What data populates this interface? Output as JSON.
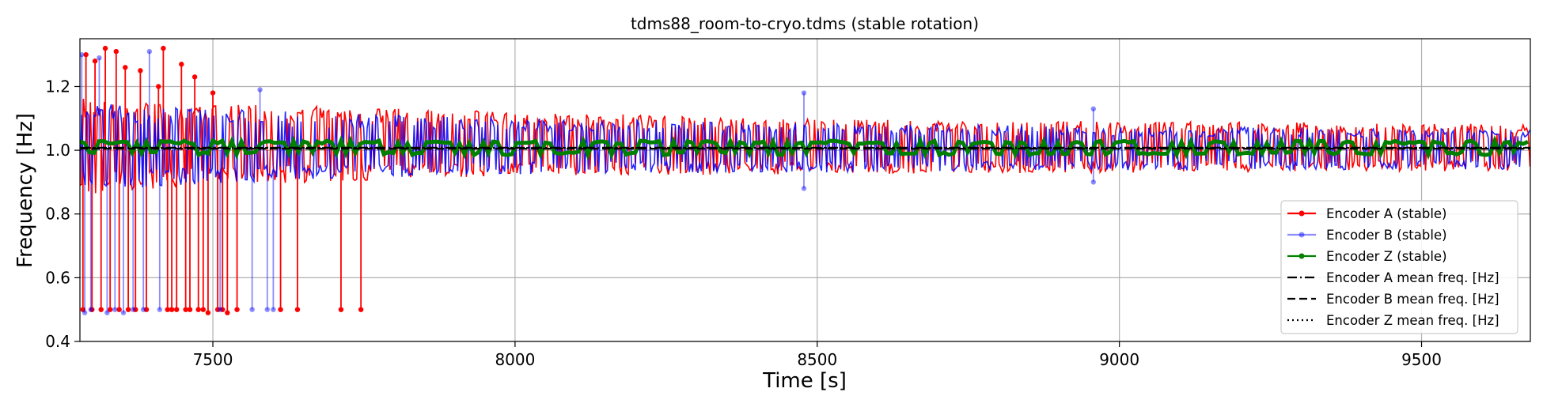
{
  "chart_data": {
    "type": "line",
    "title": "tdms88_room-to-cryo.tdms (stable rotation)",
    "xlabel": "Time [s]",
    "ylabel": "Frequency [Hz]",
    "xlim": [
      7280,
      9680
    ],
    "ylim": [
      0.4,
      1.35
    ],
    "xticks": [
      7500,
      8000,
      8500,
      9000,
      9500
    ],
    "yticks": [
      0.4,
      0.6,
      0.8,
      1.0,
      1.2
    ],
    "xtick_labels": [
      "7500",
      "8000",
      "8500",
      "9000",
      "9500"
    ],
    "ytick_labels": [
      "0.4",
      "0.6",
      "0.8",
      "1.0",
      "1.2"
    ],
    "grid": true,
    "legend_position": "lower-right",
    "series": [
      {
        "name": "Encoder A (stable)",
        "color": "#ff0000",
        "marker": "dot",
        "band": {
          "x": [
            7280,
            7500,
            8000,
            8500,
            9000,
            9500,
            9680
          ],
          "low": [
            0.86,
            0.89,
            0.92,
            0.925,
            0.93,
            0.935,
            0.935
          ],
          "high": [
            1.17,
            1.15,
            1.12,
            1.1,
            1.09,
            1.085,
            1.08
          ]
        },
        "spikes": [
          {
            "x": 7285,
            "y": 0.5
          },
          {
            "x": 7290,
            "y": 1.3
          },
          {
            "x": 7300,
            "y": 0.5
          },
          {
            "x": 7305,
            "y": 1.28
          },
          {
            "x": 7315,
            "y": 0.5
          },
          {
            "x": 7322,
            "y": 1.32
          },
          {
            "x": 7330,
            "y": 0.5
          },
          {
            "x": 7340,
            "y": 1.31
          },
          {
            "x": 7345,
            "y": 0.5
          },
          {
            "x": 7355,
            "y": 1.26
          },
          {
            "x": 7360,
            "y": 0.5
          },
          {
            "x": 7372,
            "y": 0.5
          },
          {
            "x": 7380,
            "y": 1.25
          },
          {
            "x": 7390,
            "y": 0.5
          },
          {
            "x": 7410,
            "y": 1.2
          },
          {
            "x": 7418,
            "y": 1.32
          },
          {
            "x": 7425,
            "y": 0.5
          },
          {
            "x": 7432,
            "y": 0.5
          },
          {
            "x": 7440,
            "y": 0.5
          },
          {
            "x": 7448,
            "y": 1.27
          },
          {
            "x": 7455,
            "y": 0.5
          },
          {
            "x": 7462,
            "y": 0.5
          },
          {
            "x": 7470,
            "y": 1.23
          },
          {
            "x": 7476,
            "y": 0.5
          },
          {
            "x": 7484,
            "y": 0.5
          },
          {
            "x": 7492,
            "y": 0.49
          },
          {
            "x": 7500,
            "y": 1.18
          },
          {
            "x": 7508,
            "y": 0.5
          },
          {
            "x": 7516,
            "y": 0.5
          },
          {
            "x": 7524,
            "y": 0.49
          },
          {
            "x": 7540,
            "y": 0.5
          },
          {
            "x": 7612,
            "y": 0.5
          },
          {
            "x": 7640,
            "y": 0.5
          },
          {
            "x": 7712,
            "y": 0.5
          },
          {
            "x": 7745,
            "y": 0.5
          }
        ]
      },
      {
        "name": "Encoder B (stable)",
        "color": "#0000ff",
        "marker": "dot",
        "band": {
          "x": [
            7280,
            7500,
            8000,
            8500,
            9000,
            9500,
            9680
          ],
          "low": [
            0.87,
            0.895,
            0.925,
            0.93,
            0.935,
            0.94,
            0.94
          ],
          "high": [
            1.15,
            1.13,
            1.1,
            1.085,
            1.075,
            1.07,
            1.065
          ]
        },
        "spikes": [
          {
            "x": 7283,
            "y": 1.3
          },
          {
            "x": 7288,
            "y": 0.49
          },
          {
            "x": 7298,
            "y": 0.5
          },
          {
            "x": 7312,
            "y": 1.29
          },
          {
            "x": 7325,
            "y": 0.49
          },
          {
            "x": 7338,
            "y": 0.5
          },
          {
            "x": 7352,
            "y": 0.49
          },
          {
            "x": 7368,
            "y": 0.5
          },
          {
            "x": 7385,
            "y": 0.5
          },
          {
            "x": 7395,
            "y": 1.31
          },
          {
            "x": 7412,
            "y": 0.5
          },
          {
            "x": 7512,
            "y": 0.5
          },
          {
            "x": 7565,
            "y": 0.5
          },
          {
            "x": 7578,
            "y": 1.19
          },
          {
            "x": 7590,
            "y": 0.5
          },
          {
            "x": 7600,
            "y": 0.5
          },
          {
            "x": 8478,
            "y": 1.18
          },
          {
            "x": 8478,
            "y": 0.88
          },
          {
            "x": 8957,
            "y": 1.13
          },
          {
            "x": 8957,
            "y": 0.9
          }
        ]
      },
      {
        "name": "Encoder Z (stable)",
        "color": "#008000",
        "marker": "dot",
        "band": {
          "x": [
            7280,
            9680
          ],
          "low": [
            0.985,
            0.985
          ],
          "high": [
            1.03,
            1.03
          ]
        },
        "spikes": []
      }
    ],
    "mean_lines": [
      {
        "name": "Encoder A mean freq. [Hz]",
        "style": "dashdot",
        "y": 1.008
      },
      {
        "name": "Encoder B mean freq. [Hz]",
        "style": "dashed",
        "y": 1.005
      },
      {
        "name": "Encoder Z mean freq. [Hz]",
        "style": "dotted",
        "y": 1.007
      }
    ]
  }
}
